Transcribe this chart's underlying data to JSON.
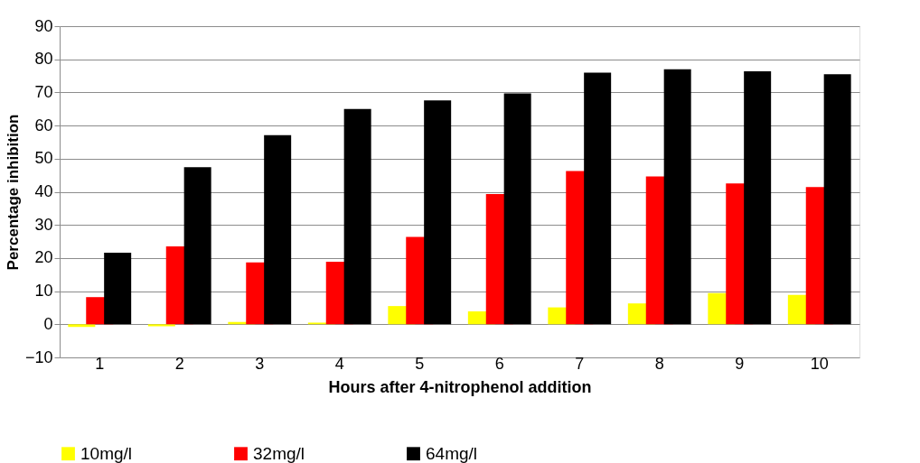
{
  "chart_data": {
    "type": "bar",
    "xlabel": "Hours after 4-nitrophenol addition",
    "ylabel": "Percentage inhibition",
    "categories": [
      "1",
      "2",
      "3",
      "4",
      "5",
      "6",
      "7",
      "8",
      "9",
      "10"
    ],
    "series": [
      {
        "name": "10mg/l",
        "color": "#ffff00",
        "values": [
          -0.8,
          -0.6,
          0.7,
          0.5,
          5.5,
          3.9,
          5.1,
          6.3,
          9.4,
          8.9
        ]
      },
      {
        "name": "32mg/l",
        "color": "#ff0000",
        "values": [
          8.2,
          23.5,
          18.7,
          18.9,
          26.4,
          39.3,
          46.3,
          44.6,
          42.5,
          41.4
        ]
      },
      {
        "name": "64mg/l",
        "color": "#000000",
        "values": [
          21.6,
          47.4,
          57.1,
          65.0,
          67.6,
          69.7,
          76.0,
          77.0,
          76.4,
          75.5
        ]
      }
    ],
    "ylim": [
      -10,
      90
    ],
    "yticks": [
      -10,
      0,
      10,
      20,
      30,
      40,
      50,
      60,
      70,
      80,
      90
    ],
    "grid": "y",
    "legend": "bottom"
  }
}
